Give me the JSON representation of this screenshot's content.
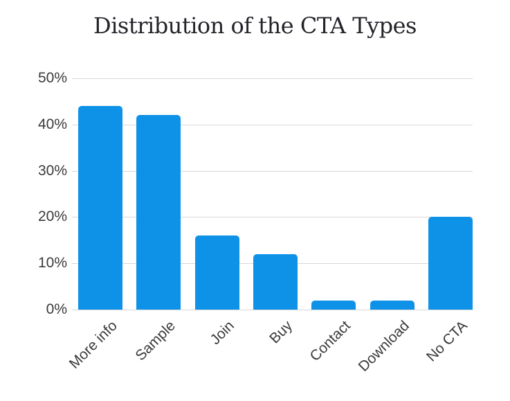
{
  "page": {
    "background_color": "#ffffff"
  },
  "chart_data": {
    "type": "bar",
    "title": "Distribution of the CTA Types",
    "categories": [
      "More info",
      "Sample",
      "Join",
      "Buy",
      "Contact",
      "Download",
      "No CTA"
    ],
    "values": [
      44,
      42,
      16,
      12,
      2,
      2,
      20
    ],
    "value_unit": "%",
    "xlabel": "",
    "ylabel": "",
    "ylim": [
      0,
      50
    ],
    "ytick_step": 10,
    "ytick_labels": [
      "0%",
      "10%",
      "20%",
      "30%",
      "40%",
      "50%"
    ],
    "grid": "horizontal",
    "legend_position": "none",
    "bar_color": "#0e92e8",
    "gridline_color": "#d6d6d6",
    "title_color": "#24232a",
    "tick_label_color": "#3a3a3a"
  }
}
